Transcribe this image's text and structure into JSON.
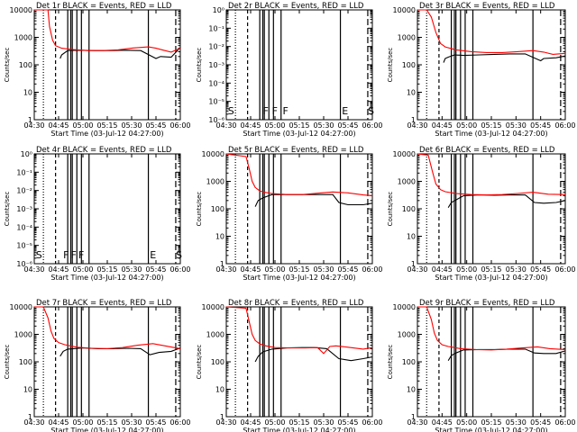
{
  "chart_data": [
    {
      "type": "line",
      "panel": "Det 1r",
      "title": "Det 1r BLACK = Events, RED = LLD",
      "xlabel": "Start Time (03-Jul-12 04:27:00)",
      "ylabel": "Counts/sec",
      "ylog": true,
      "ylim": [
        1,
        10000
      ],
      "yticks": [
        "1",
        "10",
        "100",
        "1000",
        "10000"
      ],
      "xticks": [
        "04:30",
        "04:45",
        "05:00",
        "05:15",
        "05:30",
        "05:45",
        "06:00"
      ],
      "xlim": [
        0,
        96
      ],
      "markers": [],
      "series": [
        {
          "name": "Events",
          "color": "#000000",
          "x": [
            0,
            11,
            14,
            17,
            18,
            22,
            28,
            40,
            50,
            60,
            70,
            80,
            83,
            90,
            96
          ],
          "y": [
            null,
            null,
            null,
            170,
            230,
            330,
            340,
            330,
            330,
            340,
            330,
            170,
            200,
            190,
            430
          ]
        },
        {
          "name": "LLD",
          "color": "#ff0000",
          "x": [
            0,
            6,
            9,
            10,
            12,
            14,
            18,
            25,
            35,
            45,
            55,
            65,
            75,
            80,
            85,
            90,
            96
          ],
          "y": [
            10000,
            10000,
            10000,
            2500,
            800,
            500,
            400,
            360,
            330,
            330,
            350,
            410,
            450,
            400,
            340,
            290,
            400
          ]
        }
      ]
    },
    {
      "type": "line",
      "panel": "Det 2r",
      "title": "Det 2r BLACK = Events, RED = LLD",
      "xlabel": "Start Time (03-Jul-12 04:27:00)",
      "ylabel": "Counts/sec",
      "ylog": true,
      "ylim": [
        1e-06,
        1
      ],
      "yticks": [
        "10⁻⁶",
        "10⁻⁵",
        "10⁻⁴",
        "10⁻³",
        "10⁻²",
        "10⁻¹",
        "10⁰"
      ],
      "xticks": [
        "04:30",
        "04:45",
        "05:00",
        "05:15",
        "05:30",
        "05:45",
        "06:00"
      ],
      "xlim": [
        0,
        96
      ],
      "markers": [
        {
          "label": "S",
          "x": 1
        },
        {
          "label": "F",
          "x": 24
        },
        {
          "label": "F",
          "x": 30
        },
        {
          "label": "F",
          "x": 37
        },
        {
          "label": "E",
          "x": 76
        },
        {
          "label": "S",
          "x": 93
        }
      ],
      "series": []
    },
    {
      "type": "line",
      "panel": "Det 3r",
      "title": "Det 3r BLACK = Events, RED = LLD",
      "xlabel": "Start Time (03-Jul-12 04:27:00)",
      "ylabel": "Counts/sec",
      "ylog": true,
      "ylim": [
        1,
        10000
      ],
      "yticks": [
        "1",
        "10",
        "100",
        "1000",
        "10000"
      ],
      "xticks": [
        "04:30",
        "04:45",
        "05:00",
        "05:15",
        "05:30",
        "05:45",
        "06:00"
      ],
      "xlim": [
        0,
        96
      ],
      "markers": [],
      "series": [
        {
          "name": "Events",
          "color": "#000000",
          "x": [
            0,
            17,
            18,
            20,
            24,
            30,
            40,
            50,
            60,
            70,
            80,
            82,
            90,
            96
          ],
          "y": [
            null,
            120,
            170,
            190,
            230,
            220,
            230,
            240,
            250,
            250,
            140,
            170,
            180,
            210
          ]
        },
        {
          "name": "LLD",
          "color": "#ff0000",
          "x": [
            0,
            6,
            9,
            12,
            15,
            18,
            25,
            35,
            45,
            55,
            65,
            75,
            82,
            88,
            96
          ],
          "y": [
            10000,
            10000,
            5500,
            1500,
            600,
            450,
            350,
            300,
            280,
            280,
            300,
            330,
            290,
            240,
            260
          ]
        }
      ]
    },
    {
      "type": "line",
      "panel": "Det 4r",
      "title": "Det 4r BLACK = Events, RED = LLD",
      "xlabel": "Start Time (03-Jul-12 04:27:00)",
      "ylabel": "Counts/sec",
      "ylog": true,
      "ylim": [
        1e-06,
        1
      ],
      "yticks": [
        "10⁻⁶",
        "10⁻⁵",
        "10⁻⁴",
        "10⁻³",
        "10⁻²",
        "10⁻¹",
        "10⁰"
      ],
      "xticks": [
        "04:30",
        "04:45",
        "05:00",
        "05:15",
        "05:30",
        "05:45",
        "06:00"
      ],
      "xlim": [
        0,
        96
      ],
      "markers": [
        {
          "label": "S",
          "x": 1
        },
        {
          "label": "F",
          "x": 19
        },
        {
          "label": "F",
          "x": 24
        },
        {
          "label": "F",
          "x": 29
        },
        {
          "label": "E",
          "x": 76
        },
        {
          "label": "S",
          "x": 93
        }
      ],
      "series": []
    },
    {
      "type": "line",
      "panel": "Det 5r",
      "title": "Det 5r BLACK = Events, RED = LLD",
      "xlabel": "Start Time (03-Jul-12 04:27:00)",
      "ylabel": "Counts/sec",
      "ylog": true,
      "ylim": [
        1,
        10000
      ],
      "yticks": [
        "1",
        "10",
        "100",
        "1000",
        "10000"
      ],
      "xticks": [
        "04:30",
        "04:45",
        "05:00",
        "05:15",
        "05:30",
        "05:45",
        "06:00"
      ],
      "xlim": [
        0,
        96
      ],
      "markers": [],
      "series": [
        {
          "name": "Events",
          "color": "#000000",
          "x": [
            0,
            19,
            21,
            24,
            30,
            40,
            50,
            60,
            70,
            74,
            80,
            90,
            96
          ],
          "y": [
            null,
            120,
            200,
            250,
            330,
            330,
            330,
            330,
            330,
            170,
            140,
            140,
            160
          ]
        },
        {
          "name": "LLD",
          "color": "#ff0000",
          "x": [
            0,
            13,
            15,
            17,
            19,
            22,
            25,
            30,
            40,
            50,
            60,
            70,
            80,
            90,
            96
          ],
          "y": [
            10000,
            8000,
            3000,
            1000,
            600,
            450,
            400,
            360,
            330,
            330,
            370,
            410,
            380,
            320,
            300
          ]
        }
      ]
    },
    {
      "type": "line",
      "panel": "Det 6r",
      "title": "Det 6r BLACK = Events, RED = LLD",
      "xlabel": "Start Time (03-Jul-12 04:27:00)",
      "ylabel": "Counts/sec",
      "ylog": true,
      "ylim": [
        1,
        10000
      ],
      "yticks": [
        "1",
        "10",
        "100",
        "1000",
        "10000"
      ],
      "xticks": [
        "04:30",
        "04:45",
        "05:00",
        "05:15",
        "05:30",
        "05:45",
        "06:00"
      ],
      "xlim": [
        0,
        96
      ],
      "markers": [],
      "series": [
        {
          "name": "Events",
          "color": "#000000",
          "x": [
            0,
            20,
            22,
            25,
            30,
            40,
            50,
            60,
            70,
            76,
            82,
            90,
            96
          ],
          "y": [
            null,
            110,
            170,
            210,
            300,
            320,
            310,
            320,
            320,
            170,
            160,
            170,
            200
          ]
        },
        {
          "name": "LLD",
          "color": "#ff0000",
          "x": [
            0,
            7,
            10,
            12,
            15,
            18,
            25,
            35,
            45,
            55,
            65,
            75,
            85,
            96
          ],
          "y": [
            10000,
            9000,
            2000,
            800,
            500,
            420,
            360,
            330,
            320,
            330,
            360,
            400,
            340,
            330
          ]
        }
      ]
    },
    {
      "type": "line",
      "panel": "Det 7r",
      "title": "Det 7r BLACK = Events, RED = LLD",
      "xlabel": "Start Time (03-Jul-12 04:27:00)",
      "ylabel": "Counts/sec",
      "ylog": true,
      "ylim": [
        1,
        10000
      ],
      "yticks": [
        "1",
        "10",
        "100",
        "1000",
        "10000"
      ],
      "xticks": [
        "04:30",
        "04:45",
        "05:00",
        "05:15",
        "05:30",
        "05:45",
        "06:00"
      ],
      "xlim": [
        0,
        96
      ],
      "markers": [],
      "series": [
        {
          "name": "Events",
          "color": "#000000",
          "x": [
            0,
            17,
            19,
            22,
            26,
            32,
            42,
            52,
            62,
            70,
            76,
            82,
            90,
            96
          ],
          "y": [
            null,
            160,
            240,
            290,
            300,
            320,
            300,
            300,
            310,
            300,
            180,
            220,
            240,
            320
          ]
        },
        {
          "name": "LLD",
          "color": "#ff0000",
          "x": [
            0,
            6,
            9,
            11,
            13,
            16,
            20,
            28,
            38,
            48,
            58,
            68,
            78,
            86,
            96
          ],
          "y": [
            10000,
            10000,
            4000,
            1300,
            700,
            500,
            420,
            340,
            310,
            300,
            330,
            400,
            460,
            380,
            300
          ]
        }
      ]
    },
    {
      "type": "line",
      "panel": "Det 8r",
      "title": "Det 8r BLACK = Events, RED = LLD",
      "xlabel": "Start Time (03-Jul-12 04:27:00)",
      "ylabel": "Counts/sec",
      "ylog": true,
      "ylim": [
        1,
        10000
      ],
      "yticks": [
        "1",
        "10",
        "100",
        "1000",
        "10000"
      ],
      "xticks": [
        "04:30",
        "04:45",
        "05:00",
        "05:15",
        "05:30",
        "05:45",
        "06:00"
      ],
      "xlim": [
        0,
        96
      ],
      "markers": [],
      "series": [
        {
          "name": "Events",
          "color": "#000000",
          "x": [
            0,
            19,
            21,
            24,
            30,
            40,
            50,
            58,
            66,
            74,
            82,
            90,
            96
          ],
          "y": [
            null,
            100,
            160,
            230,
            290,
            320,
            330,
            330,
            300,
            130,
            110,
            130,
            150
          ]
        },
        {
          "name": "LLD",
          "color": "#ff0000",
          "x": [
            0,
            13,
            15,
            17,
            19,
            22,
            26,
            32,
            42,
            52,
            60,
            64,
            68,
            72,
            80,
            90,
            96
          ],
          "y": [
            10000,
            9000,
            3000,
            1000,
            600,
            450,
            380,
            330,
            320,
            320,
            330,
            200,
            360,
            380,
            340,
            290,
            330
          ]
        }
      ]
    },
    {
      "type": "line",
      "panel": "Det 9r",
      "title": "Det 9r BLACK = Events, RED = LLD",
      "xlabel": "Start Time (03-Jul-12 04:27:00)",
      "ylabel": "Counts/sec",
      "ylog": true,
      "ylim": [
        1,
        10000
      ],
      "yticks": [
        "1",
        "10",
        "100",
        "1000",
        "10000"
      ],
      "xticks": [
        "04:30",
        "04:45",
        "05:00",
        "05:15",
        "05:30",
        "05:45",
        "06:00"
      ],
      "xlim": [
        0,
        96
      ],
      "markers": [],
      "series": [
        {
          "name": "Events",
          "color": "#000000",
          "x": [
            0,
            20,
            22,
            25,
            30,
            40,
            50,
            60,
            70,
            76,
            82,
            90,
            96
          ],
          "y": [
            null,
            110,
            170,
            210,
            270,
            280,
            280,
            290,
            290,
            210,
            200,
            200,
            250
          ]
        },
        {
          "name": "LLD",
          "color": "#ff0000",
          "x": [
            0,
            6,
            9,
            11,
            13,
            16,
            20,
            28,
            38,
            48,
            58,
            68,
            78,
            86,
            96
          ],
          "y": [
            10000,
            10000,
            3500,
            1100,
            600,
            420,
            360,
            300,
            280,
            270,
            290,
            320,
            350,
            300,
            280
          ]
        }
      ]
    }
  ]
}
